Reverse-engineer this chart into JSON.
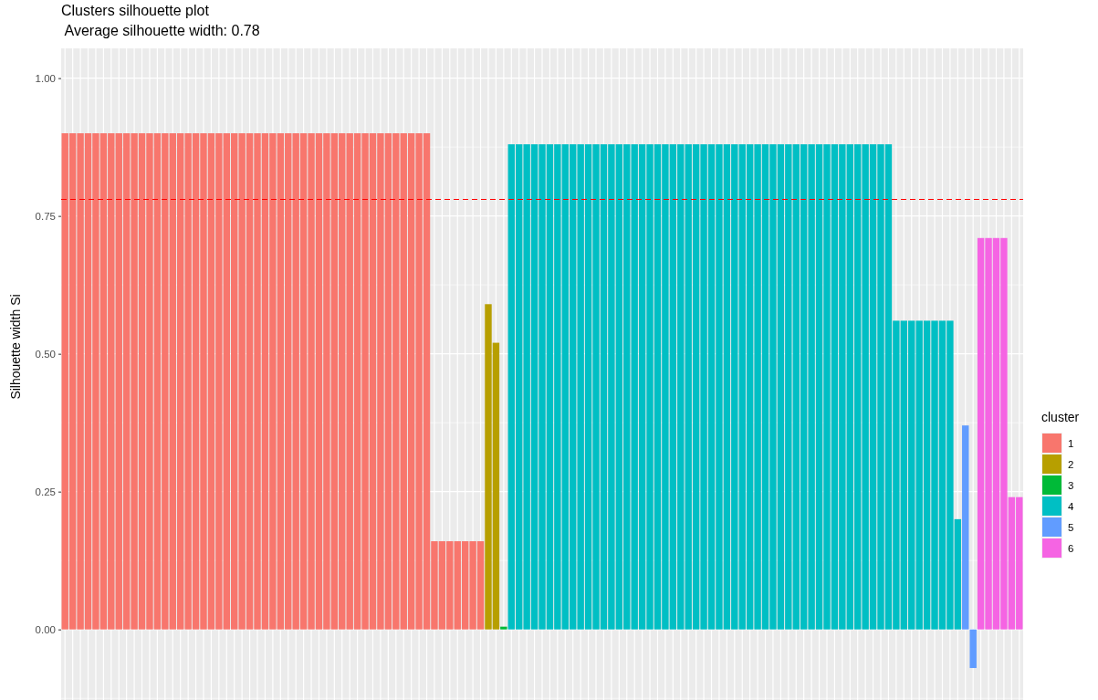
{
  "chart_data": {
    "type": "bar",
    "title": "Clusters silhouette plot",
    "subtitle": " Average silhouette width: 0.78",
    "ylabel": "Silhouette width Si",
    "legend_title": "cluster",
    "legend": "right",
    "grid": true,
    "tick_labels": "y",
    "ylim": [
      -0.128,
      1.054
    ],
    "yticks": [
      {
        "value": 0,
        "label": "0.00"
      },
      {
        "value": 0.25,
        "label": "0.25"
      },
      {
        "value": 0.5,
        "label": "0.50"
      },
      {
        "value": 0.75,
        "label": "0.75"
      },
      {
        "value": 1,
        "label": "1.00"
      }
    ],
    "ref_lines": [
      {
        "axis": "y",
        "value": 0.78,
        "color": "#ff0000",
        "line_style": "dashed"
      }
    ],
    "categories": [
      null,
      null,
      null,
      null,
      null,
      null,
      null,
      null,
      null,
      null,
      null,
      null,
      null,
      null,
      null,
      null,
      null,
      null,
      null,
      null,
      null,
      null,
      null,
      null,
      null,
      null,
      null,
      null,
      null,
      null,
      null,
      null,
      null,
      null,
      null,
      null,
      null,
      null,
      null,
      null,
      null,
      null,
      null,
      null,
      null,
      null,
      null,
      null,
      null,
      null,
      null,
      null,
      null,
      null,
      null,
      null,
      null,
      null,
      null,
      null,
      null,
      null,
      null,
      null,
      null,
      null,
      null,
      null,
      null,
      null,
      null,
      null,
      null,
      null,
      null,
      null,
      null,
      null,
      null,
      null,
      null,
      null,
      null,
      null,
      null,
      null,
      null,
      null,
      null,
      null,
      null,
      null,
      null,
      null,
      null,
      null,
      null,
      null,
      null,
      null,
      null,
      null,
      null,
      null,
      null,
      null,
      null,
      null,
      null,
      null,
      null,
      null,
      null,
      null,
      null,
      null,
      null,
      null,
      null,
      null,
      null,
      null,
      null,
      null,
      null
    ],
    "series": [
      {
        "name": "1",
        "color": "#f8766d",
        "values": [
          0.9,
          0.9,
          0.9,
          0.9,
          0.9,
          0.9,
          0.9,
          0.9,
          0.9,
          0.9,
          0.9,
          0.9,
          0.9,
          0.9,
          0.9,
          0.9,
          0.9,
          0.9,
          0.9,
          0.9,
          0.9,
          0.9,
          0.9,
          0.9,
          0.9,
          0.9,
          0.9,
          0.9,
          0.9,
          0.9,
          0.9,
          0.9,
          0.9,
          0.9,
          0.9,
          0.9,
          0.9,
          0.9,
          0.9,
          0.9,
          0.9,
          0.9,
          0.9,
          0.9,
          0.9,
          0.9,
          0.9,
          0.9,
          0.16,
          0.16,
          0.16,
          0.16,
          0.16,
          0.16,
          0.16,
          null,
          null,
          null,
          null,
          null,
          null,
          null,
          null,
          null,
          null,
          null,
          null,
          null,
          null,
          null,
          null,
          null,
          null,
          null,
          null,
          null,
          null,
          null,
          null,
          null,
          null,
          null,
          null,
          null,
          null,
          null,
          null,
          null,
          null,
          null,
          null,
          null,
          null,
          null,
          null,
          null,
          null,
          null,
          null,
          null,
          null,
          null,
          null,
          null,
          null,
          null,
          null,
          null,
          null,
          null,
          null,
          null,
          null,
          null,
          null,
          null,
          null,
          null,
          null,
          null,
          null,
          null,
          null,
          null,
          null
        ]
      },
      {
        "name": "2",
        "color": "#b79f00",
        "values": [
          null,
          null,
          null,
          null,
          null,
          null,
          null,
          null,
          null,
          null,
          null,
          null,
          null,
          null,
          null,
          null,
          null,
          null,
          null,
          null,
          null,
          null,
          null,
          null,
          null,
          null,
          null,
          null,
          null,
          null,
          null,
          null,
          null,
          null,
          null,
          null,
          null,
          null,
          null,
          null,
          null,
          null,
          null,
          null,
          null,
          null,
          null,
          null,
          null,
          null,
          null,
          null,
          null,
          null,
          null,
          0.59,
          0.52,
          null,
          null,
          null,
          null,
          null,
          null,
          null,
          null,
          null,
          null,
          null,
          null,
          null,
          null,
          null,
          null,
          null,
          null,
          null,
          null,
          null,
          null,
          null,
          null,
          null,
          null,
          null,
          null,
          null,
          null,
          null,
          null,
          null,
          null,
          null,
          null,
          null,
          null,
          null,
          null,
          null,
          null,
          null,
          null,
          null,
          null,
          null,
          null,
          null,
          null,
          null,
          null,
          null,
          null,
          null,
          null,
          null,
          null,
          null,
          null,
          null,
          null,
          null,
          null,
          null,
          null,
          null,
          null
        ]
      },
      {
        "name": "3",
        "color": "#00ba38",
        "values": [
          null,
          null,
          null,
          null,
          null,
          null,
          null,
          null,
          null,
          null,
          null,
          null,
          null,
          null,
          null,
          null,
          null,
          null,
          null,
          null,
          null,
          null,
          null,
          null,
          null,
          null,
          null,
          null,
          null,
          null,
          null,
          null,
          null,
          null,
          null,
          null,
          null,
          null,
          null,
          null,
          null,
          null,
          null,
          null,
          null,
          null,
          null,
          null,
          null,
          null,
          null,
          null,
          null,
          null,
          null,
          null,
          null,
          0.005,
          null,
          null,
          null,
          null,
          null,
          null,
          null,
          null,
          null,
          null,
          null,
          null,
          null,
          null,
          null,
          null,
          null,
          null,
          null,
          null,
          null,
          null,
          null,
          null,
          null,
          null,
          null,
          null,
          null,
          null,
          null,
          null,
          null,
          null,
          null,
          null,
          null,
          null,
          null,
          null,
          null,
          null,
          null,
          null,
          null,
          null,
          null,
          null,
          null,
          null,
          null,
          null,
          null,
          null,
          null,
          null,
          null,
          null,
          null,
          null,
          null,
          null,
          null,
          null,
          null,
          null,
          null
        ]
      },
      {
        "name": "4",
        "color": "#00bfc4",
        "values": [
          null,
          null,
          null,
          null,
          null,
          null,
          null,
          null,
          null,
          null,
          null,
          null,
          null,
          null,
          null,
          null,
          null,
          null,
          null,
          null,
          null,
          null,
          null,
          null,
          null,
          null,
          null,
          null,
          null,
          null,
          null,
          null,
          null,
          null,
          null,
          null,
          null,
          null,
          null,
          null,
          null,
          null,
          null,
          null,
          null,
          null,
          null,
          null,
          null,
          null,
          null,
          null,
          null,
          null,
          null,
          null,
          null,
          null,
          0.88,
          0.88,
          0.88,
          0.88,
          0.88,
          0.88,
          0.88,
          0.88,
          0.88,
          0.88,
          0.88,
          0.88,
          0.88,
          0.88,
          0.88,
          0.88,
          0.88,
          0.88,
          0.88,
          0.88,
          0.88,
          0.88,
          0.88,
          0.88,
          0.88,
          0.88,
          0.88,
          0.88,
          0.88,
          0.88,
          0.88,
          0.88,
          0.88,
          0.88,
          0.88,
          0.88,
          0.88,
          0.88,
          0.88,
          0.88,
          0.88,
          0.88,
          0.88,
          0.88,
          0.88,
          0.88,
          0.88,
          0.88,
          0.88,
          0.88,
          0.56,
          0.56,
          0.56,
          0.56,
          0.56,
          0.56,
          0.56,
          0.56,
          0.2,
          null,
          null,
          null,
          null,
          null,
          null,
          null,
          null
        ]
      },
      {
        "name": "5",
        "color": "#619cff",
        "values": [
          null,
          null,
          null,
          null,
          null,
          null,
          null,
          null,
          null,
          null,
          null,
          null,
          null,
          null,
          null,
          null,
          null,
          null,
          null,
          null,
          null,
          null,
          null,
          null,
          null,
          null,
          null,
          null,
          null,
          null,
          null,
          null,
          null,
          null,
          null,
          null,
          null,
          null,
          null,
          null,
          null,
          null,
          null,
          null,
          null,
          null,
          null,
          null,
          null,
          null,
          null,
          null,
          null,
          null,
          null,
          null,
          null,
          null,
          null,
          null,
          null,
          null,
          null,
          null,
          null,
          null,
          null,
          null,
          null,
          null,
          null,
          null,
          null,
          null,
          null,
          null,
          null,
          null,
          null,
          null,
          null,
          null,
          null,
          null,
          null,
          null,
          null,
          null,
          null,
          null,
          null,
          null,
          null,
          null,
          null,
          null,
          null,
          null,
          null,
          null,
          null,
          null,
          null,
          null,
          null,
          null,
          null,
          null,
          null,
          null,
          null,
          null,
          null,
          null,
          null,
          null,
          null,
          0.37,
          -0.07,
          null,
          null,
          null,
          null,
          null,
          null
        ]
      },
      {
        "name": "6",
        "color": "#f564e3",
        "values": [
          null,
          null,
          null,
          null,
          null,
          null,
          null,
          null,
          null,
          null,
          null,
          null,
          null,
          null,
          null,
          null,
          null,
          null,
          null,
          null,
          null,
          null,
          null,
          null,
          null,
          null,
          null,
          null,
          null,
          null,
          null,
          null,
          null,
          null,
          null,
          null,
          null,
          null,
          null,
          null,
          null,
          null,
          null,
          null,
          null,
          null,
          null,
          null,
          null,
          null,
          null,
          null,
          null,
          null,
          null,
          null,
          null,
          null,
          null,
          null,
          null,
          null,
          null,
          null,
          null,
          null,
          null,
          null,
          null,
          null,
          null,
          null,
          null,
          null,
          null,
          null,
          null,
          null,
          null,
          null,
          null,
          null,
          null,
          null,
          null,
          null,
          null,
          null,
          null,
          null,
          null,
          null,
          null,
          null,
          null,
          null,
          null,
          null,
          null,
          null,
          null,
          null,
          null,
          null,
          null,
          null,
          null,
          null,
          null,
          null,
          null,
          null,
          null,
          null,
          null,
          null,
          null,
          null,
          null,
          0.71,
          0.71,
          0.71,
          0.71,
          0.24,
          0.24
        ]
      }
    ]
  }
}
